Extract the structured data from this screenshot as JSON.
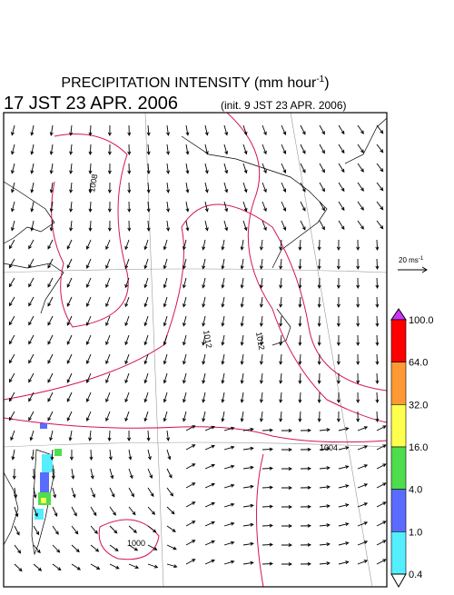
{
  "header": {
    "title_main": "PRECIPITATION INTENSITY (mm hour",
    "title_sup": "-1",
    "title_end": ")",
    "valid_time": "17 JST 23 APR. 2006",
    "init_time": "(init. 9 JST 23 APR. 2006)"
  },
  "wind_scale": {
    "label_main": "20 ms",
    "label_sup": "-1"
  },
  "colorbar": {
    "labels": [
      "100.0",
      "64.0",
      "32.0",
      "16.0",
      "4.0",
      "1.0",
      "0.4"
    ],
    "colors": [
      "#ff0000",
      "#ff9933",
      "#ffff4d",
      "#4ddd4d",
      "#5a6bff",
      "#55eeff"
    ],
    "over_color": "#cc33ff",
    "under_color": "#ffffff"
  },
  "contour_labels": [
    "1008",
    "1012",
    "1012",
    "1004",
    "1000"
  ]
}
